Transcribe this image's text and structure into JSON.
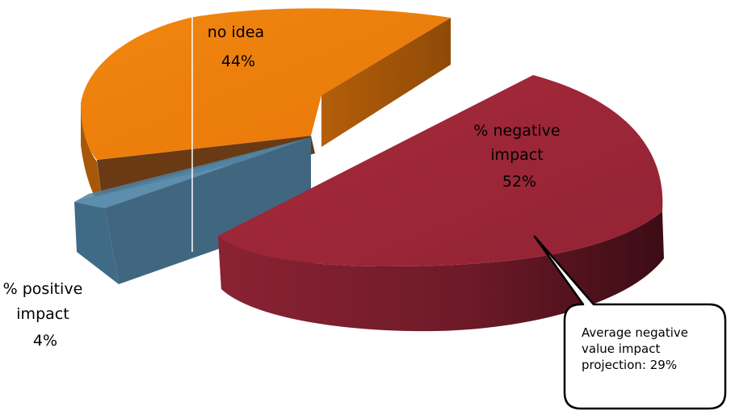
{
  "chart_data": {
    "type": "pie",
    "style": "3d-exploded",
    "slices": [
      {
        "label": "% negative impact",
        "value": 52,
        "display": "52%",
        "color": "#9B2737"
      },
      {
        "label": "no idea",
        "value": 44,
        "display": "44%",
        "color": "#ED7D0D"
      },
      {
        "label": "% positive impact",
        "value": 4,
        "display": "4%",
        "color": "#4F81A0"
      }
    ],
    "slice_label_lines": {
      "negative": [
        "% negative",
        "impact",
        "52%"
      ],
      "noidea": [
        "no idea",
        "44%"
      ],
      "positive": [
        "% positive",
        "impact",
        "4%"
      ]
    },
    "callout": {
      "text": "Average negative value impact projection: 29%",
      "points_to": "% negative impact"
    }
  }
}
